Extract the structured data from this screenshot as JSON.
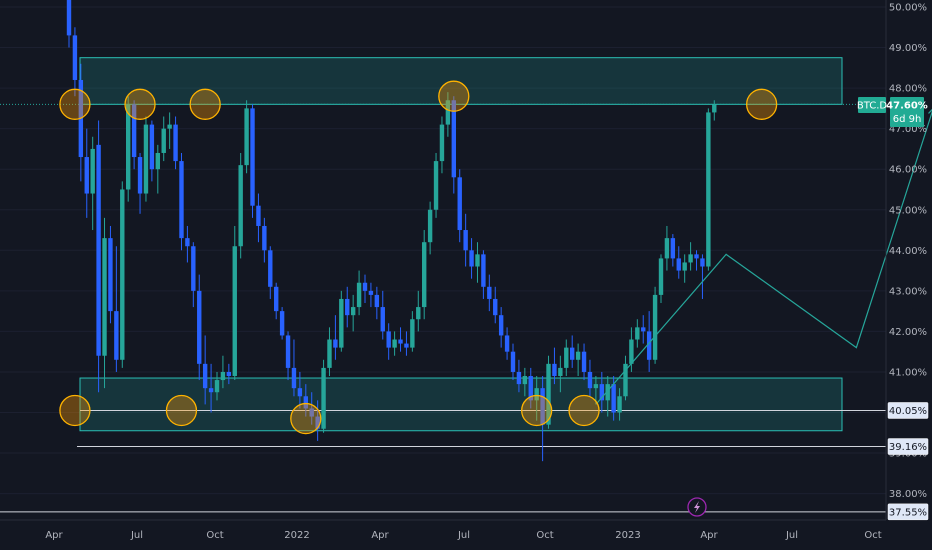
{
  "chart_data": {
    "type": "candlestick",
    "symbol": "BTC.D",
    "price_axis": {
      "ticks": [
        "50.00%",
        "49.00%",
        "48.00%",
        "47.00%",
        "46.00%",
        "45.00%",
        "44.00%",
        "43.00%",
        "42.00%",
        "41.00%",
        "40.00%",
        "39.00%",
        "38.00%"
      ],
      "range": [
        37.3,
        50.1
      ]
    },
    "time_axis": {
      "ticks": [
        "Apr",
        "Jul",
        "Oct",
        "2022",
        "Apr",
        "Jul",
        "Oct",
        "2023",
        "Apr",
        "Jul",
        "Oct"
      ]
    },
    "current": {
      "price_label": "47.60%",
      "countdown": "6d 9h",
      "symbol_label": "BTC.D",
      "value": 47.6
    },
    "levels": [
      {
        "label": "40.05%",
        "value": 40.05
      },
      {
        "label": "39.16%",
        "value": 39.16
      },
      {
        "label": "37.55%",
        "value": 37.55
      }
    ],
    "zones": [
      {
        "name": "resistance",
        "from": 47.6,
        "to": 48.75
      },
      {
        "name": "support",
        "from": 39.55,
        "to": 40.85
      }
    ],
    "candles": [
      [
        50.6,
        50.9,
        49.0,
        49.3
      ],
      [
        49.3,
        49.5,
        47.8,
        48.2
      ],
      [
        48.2,
        48.6,
        45.7,
        46.3
      ],
      [
        46.3,
        47.0,
        44.8,
        45.4
      ],
      [
        45.4,
        46.8,
        44.5,
        46.5
      ],
      [
        46.6,
        47.2,
        40.5,
        41.4
      ],
      [
        41.4,
        44.8,
        40.6,
        44.3
      ],
      [
        44.3,
        44.6,
        42.2,
        42.5
      ],
      [
        42.5,
        44.1,
        41.0,
        41.3
      ],
      [
        41.3,
        45.7,
        41.1,
        45.5
      ],
      [
        45.5,
        47.8,
        45.2,
        47.6
      ],
      [
        47.6,
        47.7,
        46.0,
        46.3
      ],
      [
        46.3,
        46.4,
        44.9,
        45.4
      ],
      [
        45.4,
        47.3,
        45.2,
        47.1
      ],
      [
        47.1,
        47.2,
        45.7,
        46.0
      ],
      [
        46.0,
        46.6,
        45.4,
        46.4
      ],
      [
        46.4,
        47.3,
        46.2,
        47.0
      ],
      [
        47.0,
        47.4,
        46.5,
        47.1
      ],
      [
        47.1,
        47.3,
        46.0,
        46.2
      ],
      [
        46.2,
        46.4,
        44.0,
        44.3
      ],
      [
        44.3,
        44.6,
        43.7,
        44.1
      ],
      [
        44.1,
        44.2,
        42.6,
        43.0
      ],
      [
        43.0,
        43.4,
        40.8,
        41.2
      ],
      [
        41.2,
        41.9,
        40.2,
        40.6
      ],
      [
        40.6,
        41.2,
        40.0,
        40.5
      ],
      [
        40.5,
        41.0,
        40.3,
        40.8
      ],
      [
        40.8,
        41.4,
        40.6,
        41.0
      ],
      [
        41.0,
        41.2,
        40.7,
        40.9
      ],
      [
        40.9,
        44.6,
        40.8,
        44.1
      ],
      [
        44.1,
        46.4,
        43.8,
        46.1
      ],
      [
        46.1,
        47.7,
        45.9,
        47.5
      ],
      [
        47.5,
        47.6,
        44.8,
        45.1
      ],
      [
        45.1,
        45.4,
        44.2,
        44.6
      ],
      [
        44.6,
        44.8,
        43.7,
        44.0
      ],
      [
        44.0,
        44.1,
        42.8,
        43.1
      ],
      [
        43.1,
        43.2,
        42.3,
        42.5
      ],
      [
        42.5,
        42.6,
        41.8,
        41.9
      ],
      [
        41.9,
        42.0,
        40.8,
        41.1
      ],
      [
        41.1,
        41.8,
        40.4,
        40.6
      ],
      [
        40.6,
        41.0,
        40.1,
        40.4
      ],
      [
        40.4,
        40.7,
        39.9,
        40.1
      ],
      [
        40.1,
        40.5,
        39.7,
        39.9
      ],
      [
        39.9,
        40.3,
        39.3,
        39.6
      ],
      [
        39.6,
        41.3,
        39.5,
        41.1
      ],
      [
        41.1,
        42.1,
        40.9,
        41.8
      ],
      [
        41.8,
        42.4,
        41.3,
        41.6
      ],
      [
        41.6,
        43.0,
        41.5,
        42.8
      ],
      [
        42.8,
        43.1,
        42.1,
        42.4
      ],
      [
        42.4,
        42.9,
        42.0,
        42.6
      ],
      [
        42.6,
        43.5,
        42.4,
        43.2
      ],
      [
        43.2,
        43.4,
        42.7,
        43.0
      ],
      [
        43.0,
        43.2,
        42.6,
        42.9
      ],
      [
        42.9,
        43.1,
        42.3,
        42.6
      ],
      [
        42.6,
        43.0,
        41.8,
        42.0
      ],
      [
        42.0,
        42.2,
        41.3,
        41.6
      ],
      [
        41.6,
        42.0,
        41.4,
        41.8
      ],
      [
        41.8,
        42.1,
        41.5,
        41.7
      ],
      [
        41.7,
        42.0,
        41.4,
        41.6
      ],
      [
        41.6,
        42.5,
        41.5,
        42.3
      ],
      [
        42.3,
        43.0,
        42.0,
        42.6
      ],
      [
        42.6,
        44.5,
        42.3,
        44.2
      ],
      [
        44.2,
        45.2,
        43.9,
        45.0
      ],
      [
        45.0,
        46.4,
        44.8,
        46.2
      ],
      [
        46.2,
        47.3,
        45.9,
        47.1
      ],
      [
        47.1,
        47.9,
        46.8,
        47.7
      ],
      [
        47.7,
        47.8,
        45.4,
        45.8
      ],
      [
        45.8,
        46.0,
        44.2,
        44.5
      ],
      [
        44.5,
        44.9,
        43.6,
        44.0
      ],
      [
        44.0,
        44.3,
        43.3,
        43.6
      ],
      [
        43.6,
        44.2,
        43.2,
        43.9
      ],
      [
        43.9,
        44.0,
        42.8,
        43.1
      ],
      [
        43.1,
        43.4,
        42.5,
        42.8
      ],
      [
        42.8,
        43.1,
        42.2,
        42.4
      ],
      [
        42.4,
        42.6,
        41.6,
        41.9
      ],
      [
        41.9,
        42.1,
        41.3,
        41.5
      ],
      [
        41.5,
        41.7,
        40.8,
        41.0
      ],
      [
        41.0,
        41.3,
        40.5,
        40.7
      ],
      [
        40.7,
        41.1,
        40.4,
        40.9
      ],
      [
        40.9,
        41.1,
        40.1,
        40.3
      ],
      [
        40.3,
        40.9,
        39.8,
        40.6
      ],
      [
        40.6,
        40.9,
        38.8,
        39.7
      ],
      [
        39.7,
        41.4,
        39.6,
        41.2
      ],
      [
        41.2,
        41.6,
        40.7,
        40.9
      ],
      [
        40.9,
        41.4,
        40.5,
        41.1
      ],
      [
        41.1,
        41.8,
        40.9,
        41.6
      ],
      [
        41.6,
        41.9,
        41.1,
        41.3
      ],
      [
        41.3,
        41.7,
        40.9,
        41.5
      ],
      [
        41.5,
        41.7,
        40.8,
        41.0
      ],
      [
        41.0,
        41.3,
        40.4,
        40.6
      ],
      [
        40.6,
        40.9,
        40.2,
        40.7
      ],
      [
        40.7,
        41.0,
        40.0,
        40.3
      ],
      [
        40.3,
        40.9,
        39.9,
        40.7
      ],
      [
        40.7,
        40.9,
        39.8,
        40.0
      ],
      [
        40.0,
        40.6,
        39.8,
        40.4
      ],
      [
        40.4,
        41.4,
        40.3,
        41.2
      ],
      [
        41.2,
        42.1,
        41.0,
        41.8
      ],
      [
        41.8,
        42.3,
        41.6,
        42.1
      ],
      [
        42.1,
        42.4,
        41.7,
        42.0
      ],
      [
        42.0,
        42.5,
        41.0,
        41.3
      ],
      [
        41.3,
        43.1,
        41.2,
        42.9
      ],
      [
        42.9,
        43.9,
        42.7,
        43.8
      ],
      [
        43.8,
        44.6,
        43.5,
        44.3
      ],
      [
        44.3,
        44.4,
        43.6,
        43.8
      ],
      [
        43.8,
        44.1,
        43.3,
        43.5
      ],
      [
        43.5,
        43.9,
        43.2,
        43.7
      ],
      [
        43.7,
        44.2,
        43.5,
        43.9
      ],
      [
        43.9,
        44.0,
        43.5,
        43.8
      ],
      [
        43.8,
        43.9,
        42.8,
        43.6
      ],
      [
        43.6,
        47.5,
        43.5,
        47.4
      ],
      [
        47.4,
        47.7,
        47.2,
        47.6
      ]
    ],
    "projection": [
      [
        89,
        40.2
      ],
      [
        111,
        43.9
      ],
      [
        133,
        41.6
      ],
      [
        146,
        47.5
      ]
    ],
    "circles": [
      [
        1,
        47.6
      ],
      [
        12,
        47.6
      ],
      [
        23,
        47.6
      ],
      [
        65,
        47.8
      ],
      [
        117,
        47.6
      ],
      [
        1,
        40.05
      ],
      [
        19,
        40.05
      ],
      [
        40,
        39.85
      ],
      [
        79,
        40.05
      ],
      [
        87,
        40.05
      ]
    ]
  }
}
